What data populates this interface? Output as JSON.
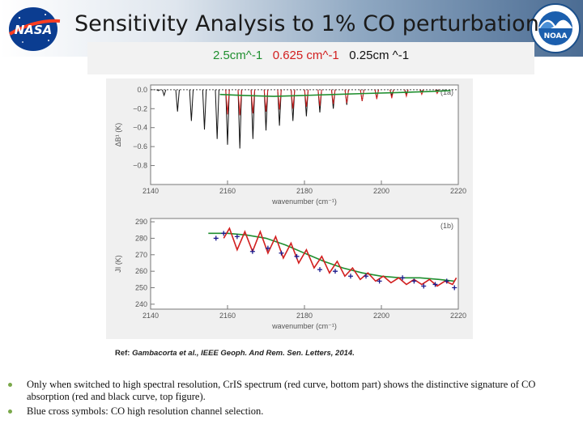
{
  "title": "Sensitivity Analysis to 1% CO perturbation",
  "logos": {
    "left": {
      "text": "NASA"
    },
    "right": {
      "text": "NOAA"
    }
  },
  "legend": {
    "items": [
      {
        "label": "2.5cm^-1",
        "color": "#1f8f2f"
      },
      {
        "label": "0.625 cm^-1",
        "color": "#d21f1f"
      },
      {
        "label": "0.25cm ^-1",
        "color": "#111111"
      }
    ]
  },
  "chart_data": [
    {
      "type": "line",
      "panel": "(1a)",
      "xlabel": "wavenumber (cm⁻¹)",
      "ylabel": "ΔB¹ (K)",
      "xlim": [
        2140,
        2220
      ],
      "ylim": [
        -1.0,
        0.05
      ],
      "xticks": [
        2140,
        2160,
        2180,
        2200,
        2220
      ],
      "yticks": [
        0.0,
        -0.2,
        -0.4,
        -0.6,
        -0.8
      ],
      "yticklabels": [
        "0.0",
        "−0.2",
        "−0.4",
        "−0.6",
        "−0.8"
      ],
      "series": [
        {
          "name": "0.25cm^-1",
          "color": "#111111",
          "lines": [
            [
              2142,
              -0.01
            ],
            [
              2143.5,
              -0.06
            ],
            [
              2147,
              -0.23
            ],
            [
              2150.6,
              -0.33
            ],
            [
              2154,
              -0.42
            ],
            [
              2157.3,
              -0.52
            ],
            [
              2160,
              -0.58
            ],
            [
              2163.2,
              -0.62
            ],
            [
              2166.6,
              -0.52
            ],
            [
              2170,
              -0.43
            ],
            [
              2173.5,
              -0.38
            ],
            [
              2177,
              -0.33
            ],
            [
              2180.5,
              -0.28
            ],
            [
              2184,
              -0.24
            ],
            [
              2187.5,
              -0.2
            ],
            [
              2191,
              -0.16
            ],
            [
              2195,
              -0.12
            ],
            [
              2198.8,
              -0.09
            ],
            [
              2202.7,
              -0.06
            ],
            [
              2206.5,
              -0.04
            ],
            [
              2210.5,
              -0.02
            ],
            [
              2214.5,
              -0.01
            ]
          ]
        },
        {
          "name": "0.625 cm^-1",
          "color": "#d21f1f",
          "lines": [
            [
              2160,
              -0.26
            ],
            [
              2163.2,
              -0.27
            ],
            [
              2166.6,
              -0.25
            ],
            [
              2170,
              -0.23
            ],
            [
              2173.5,
              -0.21
            ],
            [
              2177,
              -0.2
            ],
            [
              2180.5,
              -0.18
            ],
            [
              2184,
              -0.17
            ],
            [
              2187.5,
              -0.15
            ],
            [
              2191,
              -0.14
            ],
            [
              2195,
              -0.12
            ],
            [
              2198.8,
              -0.1
            ],
            [
              2202.7,
              -0.09
            ],
            [
              2206.5,
              -0.07
            ],
            [
              2210.5,
              -0.05
            ],
            [
              2214.5,
              -0.04
            ]
          ]
        },
        {
          "name": "2.5cm^-1",
          "color": "#1f8f2f",
          "curve": [
            [
              2158,
              -0.05
            ],
            [
              2164,
              -0.06
            ],
            [
              2172,
              -0.07
            ],
            [
              2180,
              -0.06
            ],
            [
              2188,
              -0.05
            ],
            [
              2196,
              -0.04
            ],
            [
              2204,
              -0.03
            ],
            [
              2212,
              -0.02
            ],
            [
              2218,
              -0.01
            ]
          ]
        }
      ]
    },
    {
      "type": "line",
      "panel": "(1b)",
      "xlabel": "wavenumber (cm⁻¹)",
      "ylabel": "JI (K)",
      "xlim": [
        2140,
        2220
      ],
      "ylim": [
        237,
        292
      ],
      "xticks": [
        2140,
        2160,
        2180,
        2200,
        2220
      ],
      "yticks": [
        240,
        250,
        260,
        270,
        280,
        290
      ],
      "series": [
        {
          "name": "2.5cm^-1",
          "color": "#1f8f2f",
          "curve": [
            [
              2155,
              283
            ],
            [
              2160,
              283
            ],
            [
              2165,
              282
            ],
            [
              2170,
              280
            ],
            [
              2175,
              276
            ],
            [
              2180,
              271
            ],
            [
              2185,
              266
            ],
            [
              2190,
              262
            ],
            [
              2195,
              259
            ],
            [
              2200,
              257
            ],
            [
              2205,
              256
            ],
            [
              2210,
              256
            ],
            [
              2215,
              255
            ],
            [
              2219,
              254
            ]
          ]
        },
        {
          "name": "0.625 cm^-1",
          "color": "#d21f1f",
          "curve": [
            [
              2159,
              280
            ],
            [
              2160.5,
              286
            ],
            [
              2162.5,
              273
            ],
            [
              2164.5,
              284
            ],
            [
              2166.5,
              272
            ],
            [
              2168.5,
              284
            ],
            [
              2170.5,
              271
            ],
            [
              2172.5,
              281
            ],
            [
              2174.5,
              268
            ],
            [
              2176.5,
              277
            ],
            [
              2178.5,
              265
            ],
            [
              2180.5,
              273
            ],
            [
              2182.5,
              262
            ],
            [
              2184.5,
              269
            ],
            [
              2186.5,
              259
            ],
            [
              2188.5,
              266
            ],
            [
              2190.5,
              257
            ],
            [
              2192.5,
              262
            ],
            [
              2194.5,
              255
            ],
            [
              2196.5,
              259
            ],
            [
              2198.5,
              254
            ],
            [
              2200.5,
              257
            ],
            [
              2202.5,
              253
            ],
            [
              2204.5,
              256
            ],
            [
              2206.5,
              252
            ],
            [
              2208.5,
              255
            ],
            [
              2210.5,
              252
            ],
            [
              2212.5,
              255
            ],
            [
              2214.5,
              251
            ],
            [
              2216.5,
              254
            ],
            [
              2218.5,
              252
            ],
            [
              2219.5,
              256
            ]
          ]
        },
        {
          "name": "channel selection",
          "color": "#1a1a8c",
          "marker": "+",
          "points": [
            [
              2157,
              280
            ],
            [
              2159,
              283
            ],
            [
              2162.5,
              281
            ],
            [
              2166.5,
              272
            ],
            [
              2170.5,
              274
            ],
            [
              2174,
              271
            ],
            [
              2178,
              269
            ],
            [
              2184,
              261
            ],
            [
              2188,
              260
            ],
            [
              2192,
              257
            ],
            [
              2196,
              257
            ],
            [
              2199.5,
              254
            ],
            [
              2205.5,
              256
            ],
            [
              2208.5,
              254
            ],
            [
              2211,
              251
            ],
            [
              2214,
              252
            ],
            [
              2217,
              254
            ],
            [
              2219,
              250
            ]
          ]
        }
      ]
    }
  ],
  "reference": {
    "prefix": "Ref: ",
    "citation": "Gambacorta et al., IEEE Geoph. And Rem. Sen. Letters, 2014."
  },
  "bullets": [
    "Only when switched to high spectral resolution, CrIS spectrum (red curve, bottom part)  shows the distinctive signature of CO absorption (red and black curve, top figure).",
    "Blue cross symbols: CO high resolution channel selection."
  ]
}
